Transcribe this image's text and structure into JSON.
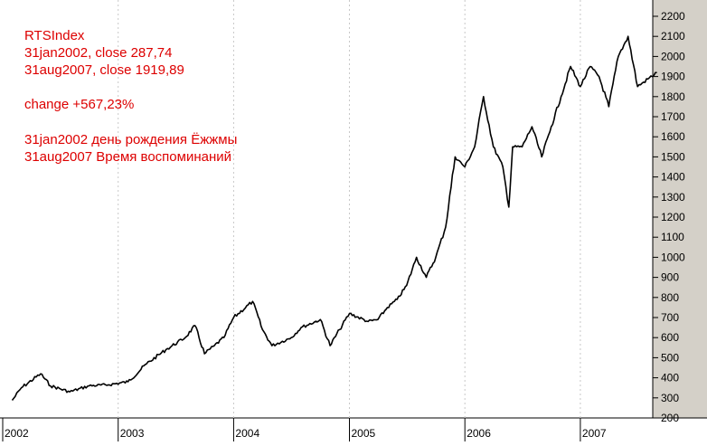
{
  "chart_data": {
    "type": "line",
    "title": "RTSIndex",
    "xlabel": "",
    "ylabel": "",
    "ylim": [
      200,
      2200
    ],
    "y_ticks": [
      200,
      300,
      400,
      500,
      600,
      700,
      800,
      900,
      1000,
      1100,
      1200,
      1300,
      1400,
      1500,
      1600,
      1700,
      1800,
      1900,
      2000,
      2100,
      2200
    ],
    "x_tick_labels": [
      "2002",
      "2003",
      "2004",
      "2005",
      "2006",
      "2007"
    ],
    "grid": "vertical dashed lines at year boundaries",
    "y_axis_position": "right",
    "annotations": [
      "31jan2002, close 287,74",
      "31aug2007, close 1919,89",
      "change +567,23%",
      "31jan2002 день рождения Ёжжмы",
      "31aug2007 Время воспоминаний"
    ],
    "series": [
      {
        "line_color": "#000000",
        "x": [
          "2002-01-31",
          "2002-03",
          "2002-05",
          "2002-06",
          "2002-08",
          "2002-10",
          "2002-12",
          "2003-02",
          "2003-04",
          "2003-06",
          "2003-08",
          "2003-09",
          "2003-10",
          "2003-11",
          "2003-12",
          "2004-01",
          "2004-03",
          "2004-04",
          "2004-05",
          "2004-07",
          "2004-08",
          "2004-10",
          "2004-11",
          "2004-12",
          "2005-01",
          "2005-03",
          "2005-04",
          "2005-05",
          "2005-06",
          "2005-07",
          "2005-08",
          "2005-09",
          "2005-10",
          "2005-11",
          "2005-12",
          "2006-01",
          "2006-02",
          "2006-03",
          "2006-04",
          "2006-05",
          "2006-05-20",
          "2006-06",
          "2006-07",
          "2006-08",
          "2006-09",
          "2006-10",
          "2006-11",
          "2006-12",
          "2007-01",
          "2007-02",
          "2007-03",
          "2007-04",
          "2007-05",
          "2007-06",
          "2007-07",
          "2007-08-31"
        ],
        "y": [
          287.74,
          350,
          420,
          360,
          330,
          360,
          365,
          380,
          470,
          540,
          600,
          660,
          520,
          560,
          600,
          700,
          780,
          640,
          560,
          600,
          650,
          690,
          560,
          640,
          720,
          680,
          690,
          750,
          790,
          860,
          1000,
          900,
          1000,
          1150,
          1500,
          1450,
          1550,
          1800,
          1550,
          1450,
          1250,
          1550,
          1550,
          1650,
          1500,
          1650,
          1800,
          1950,
          1850,
          1950,
          1900,
          1750,
          2000,
          2100,
          1850,
          1919.89
        ]
      }
    ]
  }
}
